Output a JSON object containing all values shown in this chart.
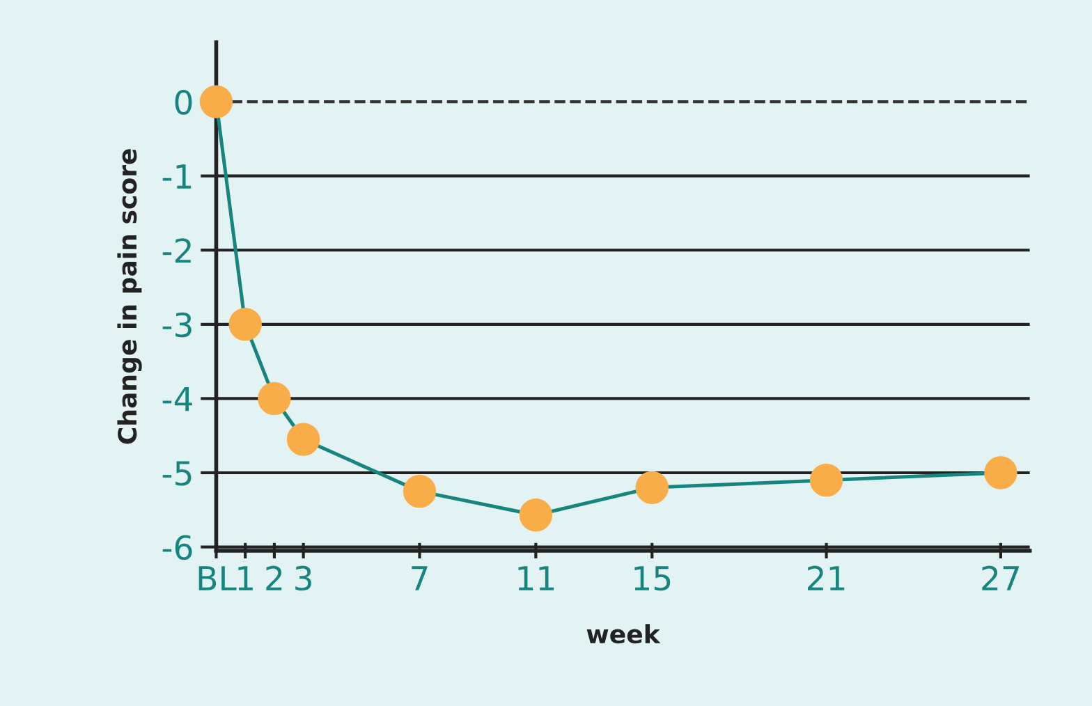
{
  "chart_data": {
    "type": "line",
    "xlabel": "week",
    "ylabel": "Change in pain score",
    "x": [
      0,
      1,
      2,
      3,
      7,
      11,
      15,
      21,
      27
    ],
    "series": [
      {
        "color": "#17857e",
        "colors": [
          "#f9ad48",
          "#f9ad48",
          "#f9ad48",
          "#f9ad48",
          "#f9ad48",
          "#f9ad48",
          "#f9ad48",
          "#f9ad48",
          "#f9ad48"
        ],
        "values": [
          0,
          -3.0,
          -4.0,
          -4.55,
          -5.25,
          -5.57,
          -5.2,
          -5.1,
          -5.0
        ]
      }
    ],
    "marker": "circle",
    "line_style": "solid",
    "xlim": [
      0,
      28
    ],
    "xticks": [
      {
        "value": 0,
        "label": "BL"
      },
      1,
      2,
      3,
      7,
      11,
      15,
      21,
      27
    ],
    "ylim": [
      -6.05,
      0.8
    ],
    "yticks": [
      {
        "value": -6,
        "label": "-6"
      },
      {
        "value": -5,
        "label": "-5"
      },
      {
        "value": -4,
        "label": "-4"
      },
      {
        "value": -3,
        "label": "-3"
      },
      {
        "value": -2,
        "label": "-2"
      },
      {
        "value": -1,
        "label": "-1"
      },
      0
    ],
    "grid": "y",
    "ref_lines": [
      {
        "axis": "y",
        "value": 0,
        "line_style": "dashed",
        "color": "#333333"
      }
    ]
  }
}
